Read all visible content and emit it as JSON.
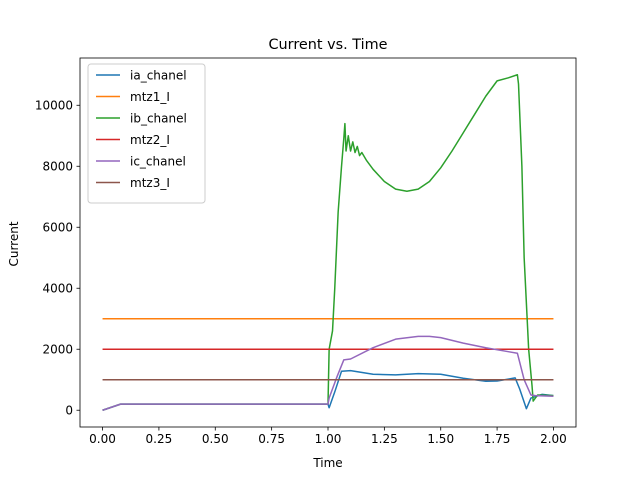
{
  "chart_data": {
    "type": "line",
    "title": "Current vs. Time",
    "xlabel": "Time",
    "ylabel": "Current",
    "xlim": [
      -0.1,
      2.1
    ],
    "ylim": [
      -550,
      11550
    ],
    "xticks": [
      0.0,
      0.25,
      0.5,
      0.75,
      1.0,
      1.25,
      1.5,
      1.75,
      2.0
    ],
    "xtick_labels": [
      "0.00",
      "0.25",
      "0.50",
      "0.75",
      "1.00",
      "1.25",
      "1.50",
      "1.75",
      "2.00"
    ],
    "yticks": [
      0,
      2000,
      4000,
      6000,
      8000,
      10000
    ],
    "ytick_labels": [
      "0",
      "2000",
      "4000",
      "6000",
      "8000",
      "10000"
    ],
    "grid": false,
    "legend_position": "upper-left",
    "series": [
      {
        "name": "ia_chanel",
        "color": "#1f77b4",
        "x": [
          0.0,
          0.08,
          0.5,
          1.0,
          1.005,
          1.03,
          1.06,
          1.1,
          1.2,
          1.3,
          1.4,
          1.5,
          1.6,
          1.7,
          1.75,
          1.8,
          1.83,
          1.85,
          1.88,
          1.9,
          1.95,
          2.0
        ],
        "y": [
          0,
          200,
          200,
          200,
          80,
          600,
          1280,
          1300,
          1180,
          1160,
          1200,
          1180,
          1050,
          950,
          960,
          1020,
          1060,
          700,
          50,
          400,
          520,
          480
        ]
      },
      {
        "name": "mtz1_I",
        "color": "#ff7f0e",
        "x": [
          0.0,
          2.0
        ],
        "y": [
          3000,
          3000
        ]
      },
      {
        "name": "ib_chanel",
        "color": "#2ca02c",
        "x": [
          0.0,
          0.08,
          0.5,
          1.0,
          1.005,
          1.02,
          1.03,
          1.045,
          1.06,
          1.07,
          1.075,
          1.08,
          1.09,
          1.1,
          1.11,
          1.12,
          1.13,
          1.14,
          1.15,
          1.17,
          1.2,
          1.25,
          1.3,
          1.35,
          1.4,
          1.45,
          1.5,
          1.55,
          1.6,
          1.65,
          1.7,
          1.75,
          1.8,
          1.84,
          1.845,
          1.86,
          1.87,
          1.89,
          1.905,
          1.91,
          1.93,
          2.0
        ],
        "y": [
          0,
          200,
          200,
          200,
          2000,
          2600,
          4000,
          6500,
          8000,
          8900,
          9400,
          8500,
          9000,
          8500,
          8800,
          8450,
          8650,
          8350,
          8450,
          8200,
          7900,
          7500,
          7250,
          7180,
          7250,
          7500,
          7950,
          8500,
          9100,
          9700,
          10300,
          10800,
          10900,
          11000,
          10700,
          8000,
          5000,
          2000,
          800,
          300,
          500,
          480
        ]
      },
      {
        "name": "mtz2_I",
        "color": "#d62728",
        "x": [
          0.0,
          2.0
        ],
        "y": [
          2000,
          2000
        ]
      },
      {
        "name": "ic_chanel",
        "color": "#9467bd",
        "x": [
          0.0,
          0.08,
          0.5,
          1.0,
          1.005,
          1.04,
          1.07,
          1.1,
          1.2,
          1.3,
          1.4,
          1.45,
          1.5,
          1.6,
          1.7,
          1.8,
          1.84,
          1.87,
          1.9,
          1.92,
          2.0
        ],
        "y": [
          0,
          200,
          200,
          200,
          400,
          1100,
          1650,
          1680,
          2050,
          2330,
          2420,
          2420,
          2380,
          2200,
          2050,
          1920,
          1870,
          1000,
          500,
          480,
          460
        ]
      },
      {
        "name": "mtz3_I",
        "color": "#8c564b",
        "x": [
          0.0,
          2.0
        ],
        "y": [
          1000,
          1000
        ]
      }
    ]
  }
}
